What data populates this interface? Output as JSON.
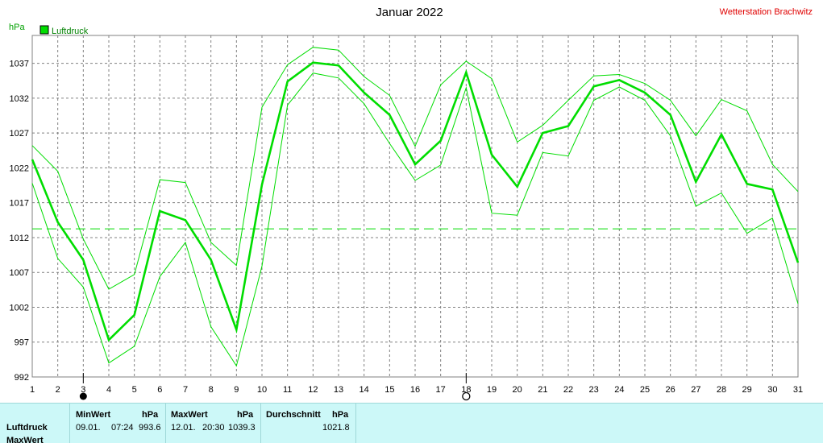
{
  "header": {
    "title": "Januar 2022",
    "station": "Wetterstation Brachwitz",
    "unit": "hPa",
    "legend_label": "Luftdruck"
  },
  "colors": {
    "series": "#00dd00",
    "grid": "#808080",
    "station": "#e00000",
    "panel": "#ccf8f8"
  },
  "chart_data": {
    "type": "line",
    "title": "Januar 2022",
    "ylabel": "hPa",
    "ylim": [
      992,
      1041
    ],
    "yticks": [
      992,
      997,
      1002,
      1007,
      1012,
      1017,
      1022,
      1027,
      1032,
      1037
    ],
    "x": [
      1,
      2,
      3,
      4,
      5,
      6,
      7,
      8,
      9,
      10,
      11,
      12,
      13,
      14,
      15,
      16,
      17,
      18,
      19,
      20,
      21,
      22,
      23,
      24,
      25,
      26,
      27,
      28,
      29,
      30,
      31
    ],
    "series": [
      {
        "name": "Luftdruck",
        "role": "mean",
        "values": [
          1023.2,
          1014.2,
          1008.8,
          997.3,
          1000.9,
          1015.8,
          1014.5,
          1008.8,
          998.8,
          1019.6,
          1034.4,
          1037.1,
          1036.7,
          1032.8,
          1029.6,
          1022.5,
          1025.9,
          1035.7,
          1023.9,
          1019.3,
          1027.0,
          1028.0,
          1033.7,
          1034.6,
          1032.8,
          1029.6,
          1020.0,
          1026.8,
          1019.7,
          1018.9,
          1008.4
        ]
      },
      {
        "role": "max",
        "values": [
          1025.2,
          1021.5,
          1011.8,
          1004.6,
          1006.7,
          1020.3,
          1019.9,
          1011.3,
          1008.0,
          1030.7,
          1036.8,
          1039.3,
          1038.9,
          1035.1,
          1032.4,
          1025.1,
          1033.9,
          1037.3,
          1034.8,
          1025.7,
          1028.1,
          1031.7,
          1035.2,
          1035.4,
          1034.1,
          1031.7,
          1026.6,
          1031.8,
          1030.2,
          1022.5,
          1018.6
        ]
      },
      {
        "role": "min",
        "values": [
          1019.8,
          1009.0,
          1004.9,
          994.0,
          996.4,
          1006.4,
          1011.3,
          999.2,
          993.6,
          1007.9,
          1031.0,
          1035.6,
          1034.9,
          1031.2,
          1025.5,
          1020.2,
          1022.4,
          1033.5,
          1015.5,
          1015.2,
          1024.2,
          1023.7,
          1031.7,
          1033.6,
          1031.7,
          1026.6,
          1016.5,
          1018.4,
          1012.6,
          1014.8,
          1002.5
        ]
      }
    ],
    "reference_line": {
      "value": 1013.25,
      "style": "dashed"
    },
    "markers": [
      {
        "x": 3,
        "symbol": "filled-circle"
      },
      {
        "x": 18,
        "symbol": "open-circle"
      }
    ],
    "grid": true,
    "legend": "top-left"
  },
  "stats": {
    "row_label": "Luftdruck",
    "row_label_2": "MaxWert",
    "min": {
      "header": "MinWert",
      "unit": "hPa",
      "date": "09.01.",
      "time": "07:24",
      "value": "993.6"
    },
    "max": {
      "header": "MaxWert",
      "unit": "hPa",
      "date": "12.01.",
      "time": "20:30",
      "value": "1039.3"
    },
    "avg": {
      "header": "Durchschnitt",
      "unit": "hPa",
      "value": "1021.8"
    }
  }
}
